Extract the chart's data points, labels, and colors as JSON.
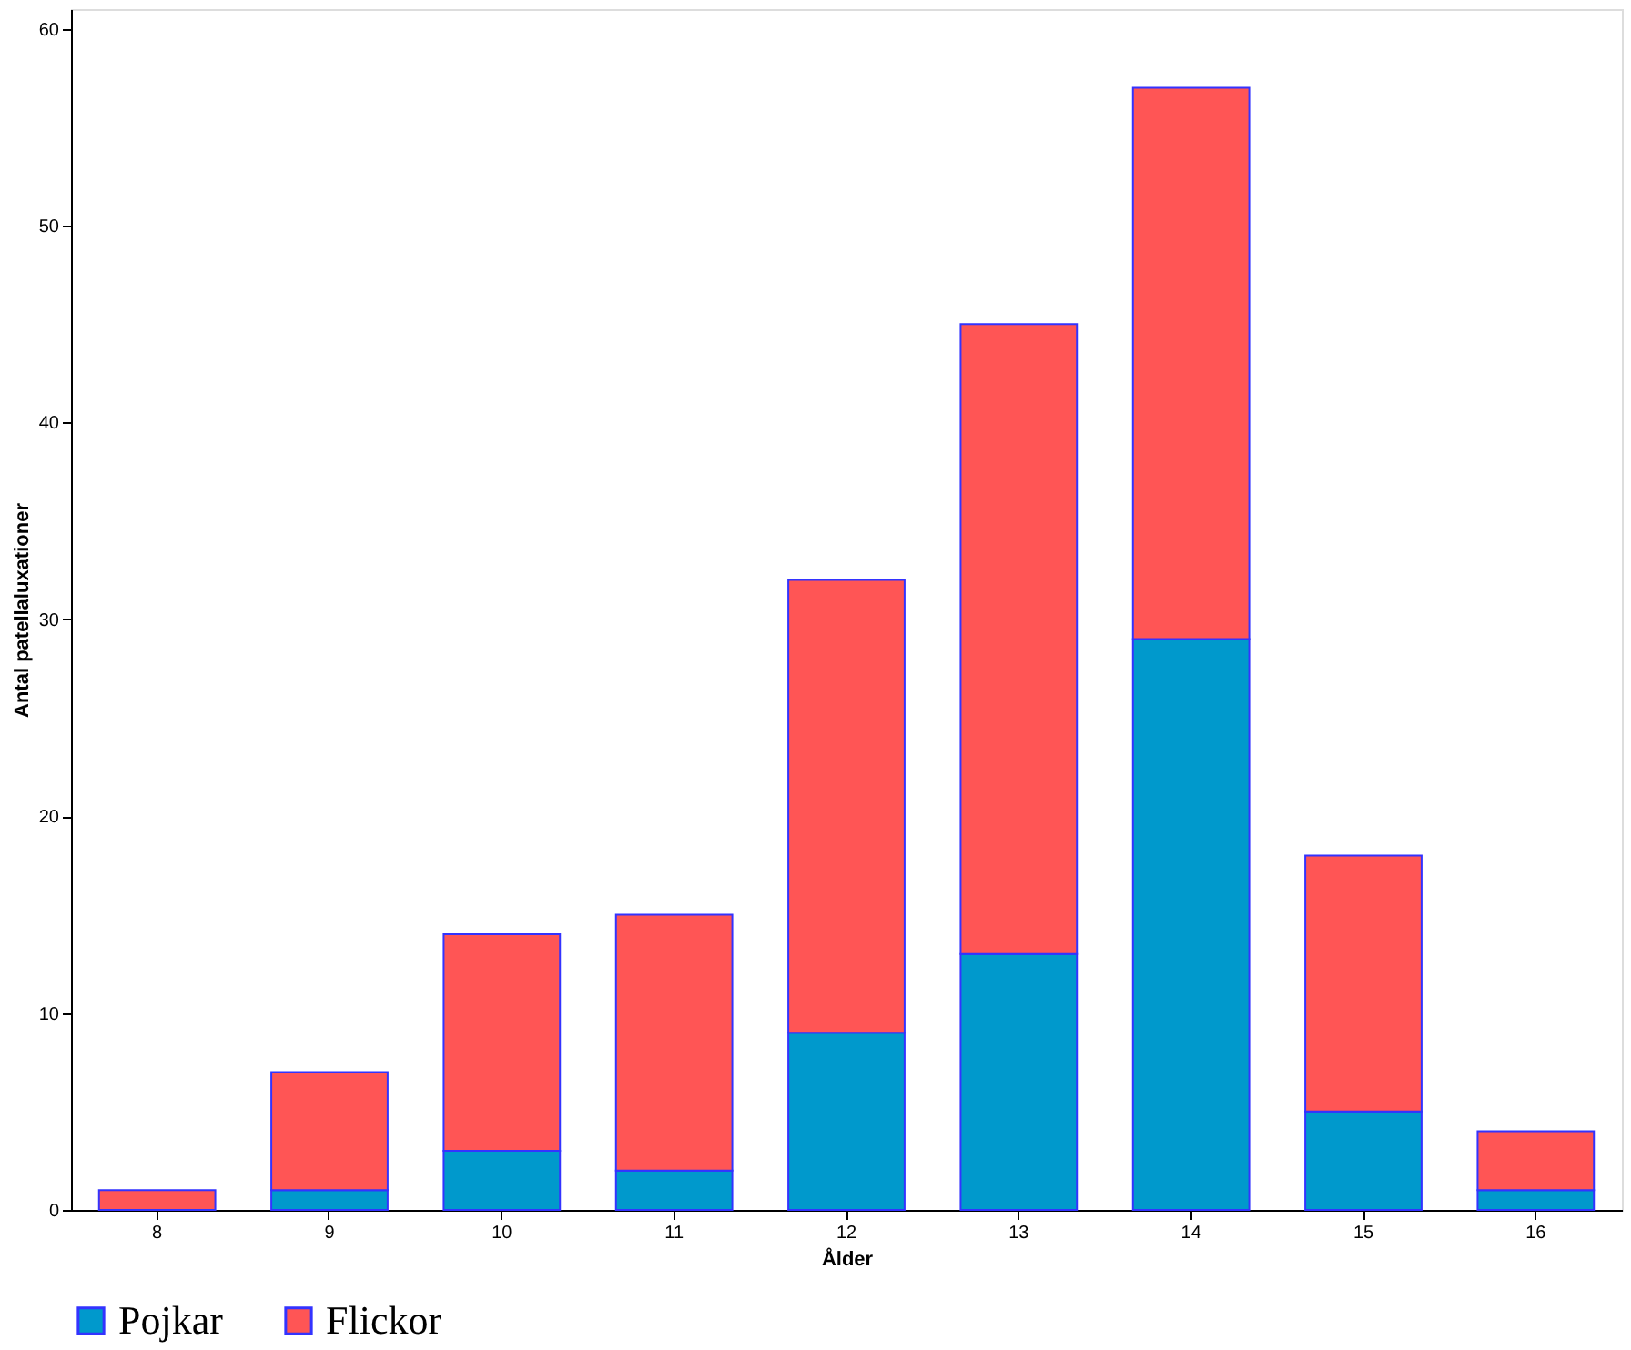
{
  "chart_data": {
    "type": "bar",
    "stacked": true,
    "xlabel": "Ålder",
    "ylabel": "Antal patellaluxationer",
    "categories": [
      "8",
      "9",
      "10",
      "11",
      "12",
      "13",
      "14",
      "15",
      "16"
    ],
    "series": [
      {
        "name": "Pojkar",
        "color": "#0099cc",
        "values": [
          0,
          1,
          3,
          2,
          9,
          13,
          29,
          5,
          1
        ]
      },
      {
        "name": "Flickor",
        "color": "#ff5555",
        "values": [
          1,
          6,
          11,
          13,
          23,
          32,
          28,
          13,
          3
        ]
      }
    ],
    "ylim": [
      0,
      61
    ],
    "yticks": [
      0,
      10,
      20,
      30,
      40,
      50,
      60
    ],
    "grid": false,
    "legend": "bottom"
  }
}
